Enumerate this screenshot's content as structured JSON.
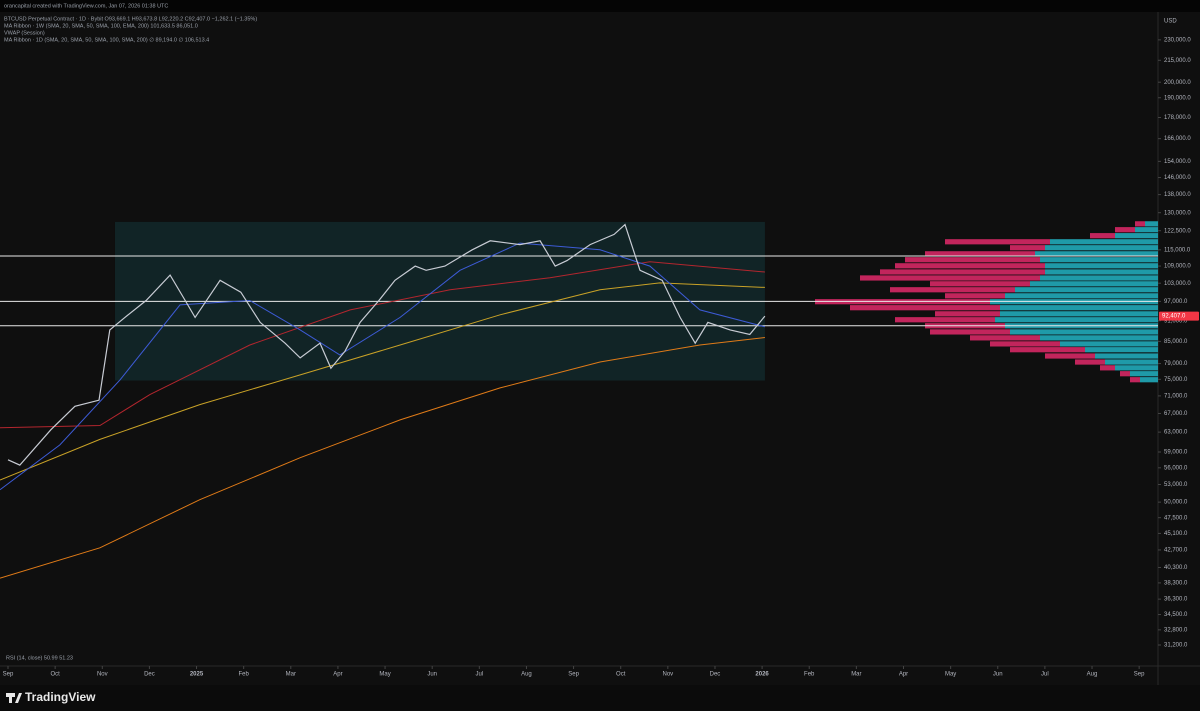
{
  "header": {
    "credit": "orancapital created with TradingView.com, Jan 07, 2026 01:38 UTC",
    "logo": "TradingView"
  },
  "chart_data": {
    "type": "line",
    "log_scale": true,
    "grid": false,
    "currency": "USD",
    "legend": [
      "BTCUSD Perpetual Contract · 1D · Bybit  O93,669.1 H93,673.8 L92,220.2 C92,407.0 −1,262.1 (−1.35%)",
      "MA Ribbon · 1W (SMA, 20, SMA, 50, SMA, 100, EMA, 200)  101,633.5  86,051.0",
      "VWAP (Session)",
      "MA Ribbon · 1D (SMA, 20, SMA, 50, SMA, 100, SMA, 200)  ∅ 89,194.0  ∅ 106,513.4"
    ],
    "rsi_label": "RSI (14, close)  50.99  51.23",
    "last_price": 92407,
    "last_price_label": "92,407.0",
    "last_price_color": "#f23645",
    "xlim": [
      -0.17,
      24.4
    ],
    "xticks": [
      {
        "value": 0,
        "label": "Sep"
      },
      {
        "value": 1,
        "label": "Oct"
      },
      {
        "value": 2,
        "label": "Nov"
      },
      {
        "value": 3,
        "label": "Dec"
      },
      {
        "value": 4,
        "label": "2025"
      },
      {
        "value": 5,
        "label": "Feb"
      },
      {
        "value": 6,
        "label": "Mar"
      },
      {
        "value": 7,
        "label": "Apr"
      },
      {
        "value": 8,
        "label": "May"
      },
      {
        "value": 9,
        "label": "Jun"
      },
      {
        "value": 10,
        "label": "Jul"
      },
      {
        "value": 11,
        "label": "Aug"
      },
      {
        "value": 12,
        "label": "Sep"
      },
      {
        "value": 13,
        "label": "Oct"
      },
      {
        "value": 14,
        "label": "Nov"
      },
      {
        "value": 15,
        "label": "Dec"
      },
      {
        "value": 16,
        "label": "2026"
      },
      {
        "value": 17,
        "label": "Feb"
      },
      {
        "value": 18,
        "label": "Mar"
      },
      {
        "value": 19,
        "label": "Apr"
      },
      {
        "value": 20,
        "label": "May"
      },
      {
        "value": 21,
        "label": "Jun"
      },
      {
        "value": 22,
        "label": "Jul"
      },
      {
        "value": 23,
        "label": "Aug"
      },
      {
        "value": 24,
        "label": "Sep"
      }
    ],
    "ylim": [
      29400,
      250500
    ],
    "yticks": [
      {
        "value": 230000,
        "label": "230,000.0"
      },
      {
        "value": 215000,
        "label": "215,000.0"
      },
      {
        "value": 200000,
        "label": "200,000.0"
      },
      {
        "value": 190000,
        "label": "190,000.0"
      },
      {
        "value": 178000,
        "label": "178,000.0"
      },
      {
        "value": 166000,
        "label": "166,000.0"
      },
      {
        "value": 154000,
        "label": "154,000.0"
      },
      {
        "value": 146000,
        "label": "146,000.0"
      },
      {
        "value": 138000,
        "label": "138,000.0"
      },
      {
        "value": 130000,
        "label": "130,000.0"
      },
      {
        "value": 122500,
        "label": "122,500.0"
      },
      {
        "value": 115000,
        "label": "115,000.0"
      },
      {
        "value": 109000,
        "label": "109,000.0"
      },
      {
        "value": 103000,
        "label": "103,000.0"
      },
      {
        "value": 97000,
        "label": "97,000.0"
      },
      {
        "value": 91000,
        "label": "91,000.0"
      },
      {
        "value": 85000,
        "label": "85,000.0"
      },
      {
        "value": 79000,
        "label": "79,000.0"
      },
      {
        "value": 75000,
        "label": "75,000.0"
      },
      {
        "value": 71000,
        "label": "71,000.0"
      },
      {
        "value": 67000,
        "label": "67,000.0"
      },
      {
        "value": 63000,
        "label": "63,000.0"
      },
      {
        "value": 59000,
        "label": "59,000.0"
      },
      {
        "value": 56000,
        "label": "56,000.0"
      },
      {
        "value": 53000,
        "label": "53,000.0"
      },
      {
        "value": 50000,
        "label": "50,000.0"
      },
      {
        "value": 47500,
        "label": "47,500.0"
      },
      {
        "value": 45100,
        "label": "45,100.0"
      },
      {
        "value": 42700,
        "label": "42,700.0"
      },
      {
        "value": 40300,
        "label": "40,300.0"
      },
      {
        "value": 38300,
        "label": "38,300.0"
      },
      {
        "value": 36300,
        "label": "36,300.0"
      },
      {
        "value": 34500,
        "label": "34,500.0"
      },
      {
        "value": 32800,
        "label": "32,800.0"
      },
      {
        "value": 31200,
        "label": "31,200.0"
      }
    ],
    "range_box": {
      "x": [
        2.27,
        16.06
      ],
      "y": [
        74700,
        126100
      ],
      "color": "#12282a"
    },
    "levels": [
      112700,
      97000,
      89500
    ],
    "level_color": "#e8e8e8",
    "series": [
      {
        "color": "#e07b18",
        "x": [
          -0.17,
          1.95,
          4.07,
          6.2,
          8.32,
          10.44,
          12.56,
          14.68,
          16.06
        ],
        "values": [
          38900,
          43000,
          50400,
          57900,
          65600,
          72900,
          79400,
          84000,
          86100
        ]
      },
      {
        "color": "#c9a227",
        "x": [
          -0.17,
          1.95,
          4.07,
          6.2,
          8.32,
          10.44,
          12.56,
          13.83,
          16.06
        ],
        "values": [
          53800,
          61500,
          69000,
          76100,
          84000,
          92800,
          100800,
          103100,
          101600
        ]
      },
      {
        "color": "#b3262e",
        "x": [
          -0.17,
          1.95,
          3.01,
          5.13,
          7.26,
          9.38,
          11.5,
          13.62,
          16.06
        ],
        "values": [
          63900,
          64400,
          71300,
          84000,
          94300,
          100800,
          104900,
          110600,
          106900
        ]
      },
      {
        "color": "#3d5bd6",
        "x": [
          -0.17,
          1.1,
          2.38,
          3.65,
          5.13,
          6.2,
          7.04,
          8.32,
          9.59,
          10.86,
          12.56,
          13.62,
          14.68,
          16.06
        ],
        "values": [
          52100,
          60400,
          74900,
          95900,
          97300,
          88300,
          81300,
          92000,
          107500,
          117600,
          115000,
          109000,
          94300,
          89200
        ]
      },
      {
        "color": "#c8ccd4",
        "x": [
          0,
          0.25,
          0.91,
          1.42,
          1.93,
          2.16,
          2.48,
          2.93,
          3.44,
          3.76,
          3.97,
          4.5,
          4.94,
          5.35,
          5.88,
          6.2,
          6.62,
          6.85,
          7.15,
          7.47,
          7.87,
          8.21,
          8.64,
          8.87,
          9.27,
          9.85,
          10.23,
          10.86,
          11.29,
          11.61,
          11.86,
          12.35,
          12.86,
          13.09,
          13.41,
          13.88,
          14.26,
          14.58,
          14.85,
          15.32,
          15.74,
          16.06
        ],
        "values": [
          57500,
          56500,
          63500,
          68600,
          70000,
          88300,
          92000,
          97300,
          105800,
          97300,
          92000,
          104000,
          100000,
          90500,
          84500,
          80500,
          84500,
          77800,
          82300,
          90500,
          97300,
          104000,
          109000,
          107500,
          109000,
          115000,
          118500,
          117000,
          118500,
          109000,
          111000,
          117000,
          121000,
          125000,
          107500,
          104000,
          92000,
          84500,
          90500,
          88300,
          87000,
          92400
        ]
      }
    ],
    "profile": {
      "up_color": "#1f9aa8",
      "down_color": "#c2255c",
      "prices": [
        125300,
        122900,
        120500,
        118100,
        115800,
        113500,
        111300,
        109100,
        106900,
        104800,
        102800,
        100800,
        98800,
        96900,
        95000,
        93100,
        91300,
        89500,
        87700,
        86000,
        84300,
        82700,
        81000,
        79400,
        77900,
        76400,
        74900
      ],
      "up": [
        13,
        23,
        43,
        108,
        113,
        123,
        118,
        113,
        113,
        118,
        128,
        143,
        153,
        168,
        158,
        158,
        163,
        153,
        148,
        118,
        98,
        73,
        63,
        53,
        43,
        28,
        18
      ],
      "down": [
        10,
        20,
        25,
        105,
        35,
        110,
        135,
        150,
        165,
        180,
        100,
        125,
        60,
        175,
        150,
        65,
        100,
        80,
        80,
        70,
        70,
        75,
        50,
        30,
        15,
        10,
        10
      ]
    }
  }
}
